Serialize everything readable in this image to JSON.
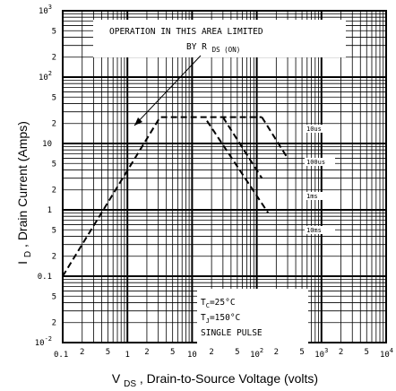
{
  "chart_data": {
    "type": "line",
    "x_scale": "log",
    "y_scale": "log",
    "xlim": [
      0.1,
      10000
    ],
    "ylim": [
      0.01,
      1000
    ],
    "xlabel": "V",
    "xlabel_sub": "DS",
    "xlabel_rest": ", Drain-to-Source Voltage (volts)",
    "ylabel": "I",
    "ylabel_sub": "D",
    "ylabel_rest": ", Drain Current (Amps)",
    "grid": "major and minor log grid",
    "x_decade_labels": [
      {
        "base": "0.1",
        "exp": ""
      },
      {
        "base": "1",
        "exp": ""
      },
      {
        "base": "10",
        "exp": ""
      },
      {
        "base": "10",
        "exp": "2"
      },
      {
        "base": "10",
        "exp": "3"
      },
      {
        "base": "10",
        "exp": "4"
      }
    ],
    "x_minor_labels": [
      "2",
      "5"
    ],
    "y_decade_labels": [
      {
        "base": "10",
        "exp": "-2"
      },
      {
        "base": "0.1",
        "exp": ""
      },
      {
        "base": "1",
        "exp": ""
      },
      {
        "base": "10",
        "exp": ""
      },
      {
        "base": "10",
        "exp": "2"
      },
      {
        "base": "10",
        "exp": "3"
      }
    ],
    "y_minor_labels": [
      "2",
      "5"
    ],
    "series": [
      {
        "name": "10us",
        "style": "dashed",
        "x": [
          0.1,
          3.2,
          120
        ],
        "y": [
          0.1,
          25,
          25
        ]
      },
      {
        "name": "100us",
        "style": "dashed",
        "x": [
          120,
          300
        ],
        "y": [
          25,
          6
        ]
      },
      {
        "name": "1ms",
        "style": "dashed",
        "x": [
          30,
          120
        ],
        "y": [
          25,
          3
        ]
      },
      {
        "name": "10ms",
        "style": "dashed",
        "x": [
          17,
          150
        ],
        "y": [
          22,
          0.9
        ]
      }
    ],
    "annotations": {
      "area_text_line1": "OPERATION IN THIS AREA LIMITED",
      "area_text_line2_prefix": "BY R",
      "area_text_line2_sub": "DS (ON)",
      "conditions": [
        {
          "pre": "T",
          "sub": "C",
          "post": "=25°C"
        },
        {
          "pre": "T",
          "sub": "J",
          "post": "=150°C"
        },
        {
          "pre": "SINGLE PULSE",
          "sub": "",
          "post": ""
        }
      ]
    }
  }
}
